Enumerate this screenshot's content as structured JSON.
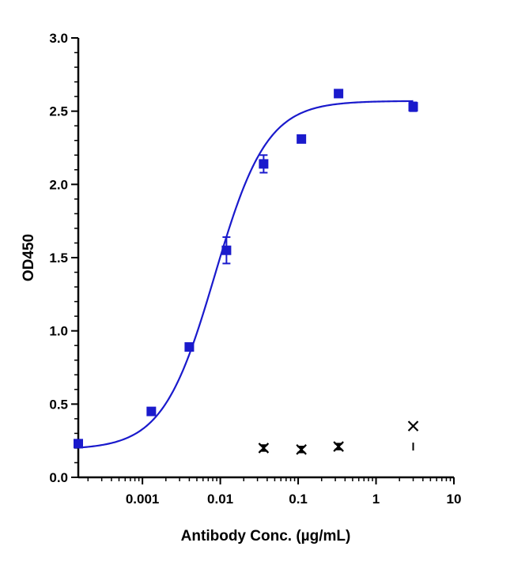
{
  "chart_data": {
    "type": "scatter",
    "title": "",
    "xlabel": "Antibody Conc. (µg/mL)",
    "ylabel": "OD450",
    "x_scale": "log",
    "xlim": [
      0.00015,
      10
    ],
    "ylim": [
      0,
      3.0
    ],
    "x_ticks": [
      {
        "value": 0.001,
        "label": "0.001"
      },
      {
        "value": 0.01,
        "label": "0.01"
      },
      {
        "value": 0.1,
        "label": "0.1"
      },
      {
        "value": 1,
        "label": "1"
      },
      {
        "value": 10,
        "label": "10"
      }
    ],
    "y_ticks": [
      {
        "value": 0,
        "label": "0.0"
      },
      {
        "value": 0.5,
        "label": "0.5"
      },
      {
        "value": 1.0,
        "label": "1.0"
      },
      {
        "value": 1.5,
        "label": "1.5"
      },
      {
        "value": 2.0,
        "label": "2.0"
      },
      {
        "value": 2.5,
        "label": "2.5"
      },
      {
        "value": 3.0,
        "label": "3.0"
      }
    ],
    "grid": false,
    "legend": "none",
    "series": [
      {
        "marker": "square",
        "color": "#1a1acc",
        "points": [
          {
            "x": 0.00015,
            "y": 0.23,
            "err": 0.01
          },
          {
            "x": 0.0013,
            "y": 0.45,
            "err": 0.01
          },
          {
            "x": 0.004,
            "y": 0.89,
            "err": 0.01
          },
          {
            "x": 0.012,
            "y": 1.55,
            "err": 0.09
          },
          {
            "x": 0.036,
            "y": 2.14,
            "err": 0.06
          },
          {
            "x": 0.11,
            "y": 2.31,
            "err": 0.01
          },
          {
            "x": 0.33,
            "y": 2.62,
            "err": 0.02
          },
          {
            "x": 3.0,
            "y": 2.53,
            "err": 0.03
          }
        ]
      },
      {
        "marker": "x",
        "color": "#000000",
        "points": [
          {
            "x": 0.036,
            "y": 0.2,
            "err": 0.02
          },
          {
            "x": 0.11,
            "y": 0.19,
            "err": 0.02
          },
          {
            "x": 0.33,
            "y": 0.21,
            "err": 0.02
          },
          {
            "x": 3.0,
            "y": 0.35,
            "err": 0.0
          }
        ]
      }
    ],
    "fit": {
      "model": "4PL",
      "color": "#1a1acc",
      "bottom": 0.19,
      "top": 2.57,
      "ec50": 0.0085,
      "hill": 1.3
    }
  }
}
